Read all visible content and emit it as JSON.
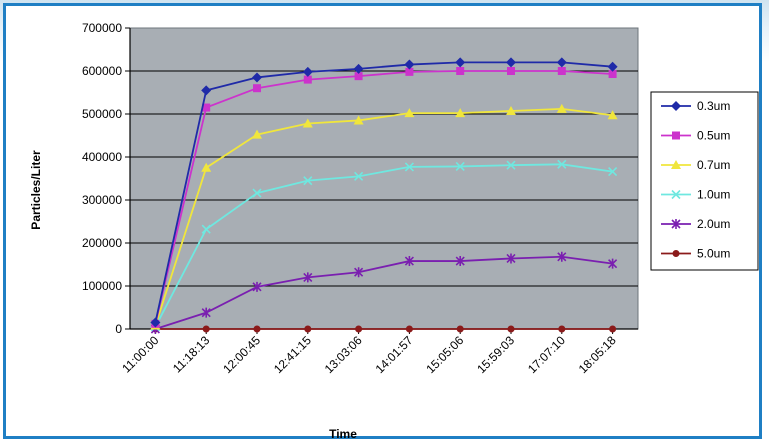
{
  "chart_data": {
    "type": "line",
    "title": "",
    "xlabel": "Time",
    "ylabel": "Particles/Liter",
    "ylim": [
      0,
      700000
    ],
    "yticks": [
      "0",
      "100000",
      "200000",
      "300000",
      "400000",
      "500000",
      "600000",
      "700000"
    ],
    "categories": [
      "11:00:00",
      "11:18:13",
      "12:00:45",
      "12:41:15",
      "13:03:06",
      "14:01:57",
      "15:05:06",
      "15:59:03",
      "17:07:10",
      "18:05:18"
    ],
    "grid": true,
    "legend_position": "right",
    "plot_background": "#a8aeb4",
    "series": [
      {
        "name": "0.3um",
        "color": "#1f2aa8",
        "marker": "diamond",
        "values": [
          15000,
          555000,
          585000,
          598000,
          605000,
          615000,
          620000,
          620000,
          620000,
          610000
        ]
      },
      {
        "name": "0.5um",
        "color": "#cc33cc",
        "marker": "square",
        "values": [
          12000,
          515000,
          560000,
          580000,
          588000,
          598000,
          600000,
          600000,
          600000,
          593000
        ]
      },
      {
        "name": "0.7um",
        "color": "#f0e63c",
        "marker": "triangle",
        "values": [
          8000,
          375000,
          452000,
          478000,
          485000,
          502000,
          502000,
          507000,
          512000,
          497000
        ]
      },
      {
        "name": "1.0um",
        "color": "#6fe8e0",
        "marker": "x",
        "values": [
          5000,
          232000,
          316000,
          345000,
          355000,
          377000,
          378000,
          381000,
          383000,
          366000
        ]
      },
      {
        "name": "2.0um",
        "color": "#7a1fb0",
        "marker": "star",
        "values": [
          0,
          38000,
          98000,
          120000,
          132000,
          158000,
          158000,
          164000,
          168000,
          152000
        ]
      },
      {
        "name": "5.0um",
        "color": "#8b1a1a",
        "marker": "circle",
        "values": [
          0,
          0,
          0,
          0,
          0,
          0,
          0,
          0,
          0,
          0
        ]
      }
    ]
  }
}
